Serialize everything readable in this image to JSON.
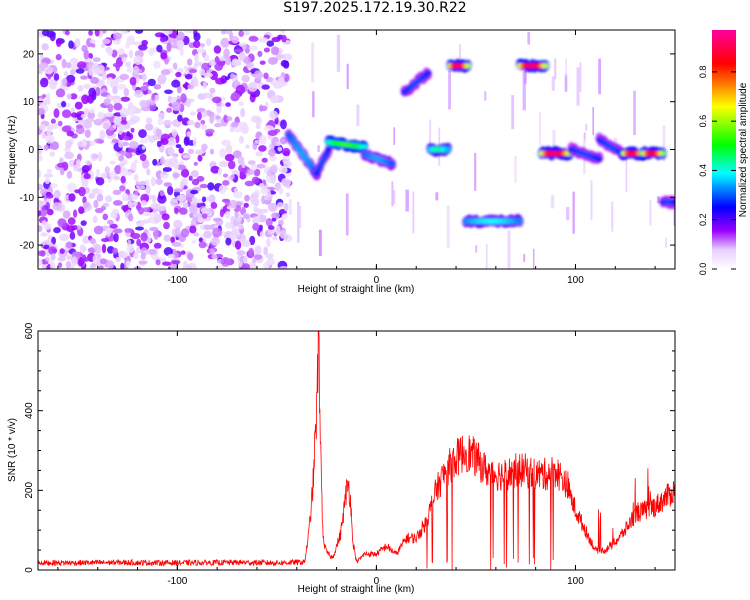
{
  "title": "S197.2025.172.19.30.R22",
  "chart_data": [
    {
      "type": "heatmap",
      "xlabel": "Height of straight line (km)",
      "ylabel": "Frequency (Hz)",
      "xlim": [
        -170,
        150
      ],
      "ylim": [
        -25,
        25
      ],
      "xticks": [
        -100,
        0,
        100
      ],
      "yticks": [
        -20,
        -10,
        0,
        10,
        20
      ],
      "colorbar": {
        "label": "Normalized spectral amplitude",
        "range": [
          0,
          0.97
        ],
        "ticks": [
          "0.0",
          "0.2",
          "0.4",
          "0.6",
          "0.8"
        ],
        "tick_values": [
          0.0,
          0.2,
          0.4,
          0.6,
          0.8
        ],
        "colormap": [
          "#ffffff",
          "#9a00ff",
          "#0000ff",
          "#00ffff",
          "#00ff00",
          "#ffff00",
          "#ff0000",
          "#ff00a0"
        ]
      },
      "noise_region": {
        "x": [
          -170,
          -44
        ],
        "level": 0.15
      },
      "features": [
        {
          "x0": -44,
          "x1": -30,
          "freq_start": 3,
          "freq_end": -5,
          "amp": 0.35
        },
        {
          "x0": -30,
          "x1": -24,
          "freq_start": -5,
          "freq_end": 0,
          "amp": 0.3
        },
        {
          "x0": -24,
          "x1": -6,
          "freq_start": 1.5,
          "freq_end": 0.5,
          "amp": 0.55
        },
        {
          "x0": -6,
          "x1": 8,
          "freq_start": -1,
          "freq_end": -3,
          "amp": 0.35
        },
        {
          "x0": 14,
          "x1": 26,
          "freq_start": 12,
          "freq_end": 16,
          "amp": 0.3
        },
        {
          "x0": 27,
          "x1": 36,
          "freq_start": 0,
          "freq_end": 0,
          "amp": 0.45
        },
        {
          "x0": 37,
          "x1": 46,
          "freq_start": 17.5,
          "freq_end": 17.5,
          "amp": 0.95
        },
        {
          "x0": 45,
          "x1": 72,
          "freq_start": -15,
          "freq_end": -15,
          "amp": 0.4
        },
        {
          "x0": 72,
          "x1": 85,
          "freq_start": 17.5,
          "freq_end": 17.5,
          "amp": 0.95
        },
        {
          "x0": 83,
          "x1": 97,
          "freq_start": -0.8,
          "freq_end": -0.8,
          "amp": 0.95
        },
        {
          "x0": 98,
          "x1": 112,
          "freq_start": 0,
          "freq_end": -2,
          "amp": 0.3
        },
        {
          "x0": 112,
          "x1": 124,
          "freq_start": 2,
          "freq_end": -1,
          "amp": 0.3
        },
        {
          "x0": 124,
          "x1": 134,
          "freq_start": -0.8,
          "freq_end": -0.8,
          "amp": 0.9
        },
        {
          "x0": 134,
          "x1": 144,
          "freq_start": -0.8,
          "freq_end": -0.8,
          "amp": 0.9
        },
        {
          "x0": 144,
          "x1": 150,
          "freq_start": -11,
          "freq_end": -11,
          "amp": 0.3
        }
      ]
    },
    {
      "type": "line",
      "xlabel": "Height of straight line (km)",
      "ylabel": "SNR (10 * v/v)",
      "xlim": [
        -170,
        150
      ],
      "ylim": [
        0,
        600
      ],
      "xticks": [
        -100,
        0,
        100
      ],
      "yticks": [
        0,
        200,
        400,
        600
      ],
      "color": "#ff0000",
      "series": [
        {
          "x": [
            -170,
            -150,
            -130,
            -110,
            -90,
            -70,
            -50,
            -36,
            -34,
            -32,
            -30,
            -29,
            -28,
            -27,
            -26,
            -25,
            -22,
            -18,
            -15,
            -14,
            -13,
            -12,
            -10,
            -6,
            0,
            5,
            10,
            15,
            20,
            25,
            30,
            35,
            40,
            45,
            50,
            55,
            60,
            65,
            70,
            75,
            80,
            85,
            90,
            95,
            100,
            105,
            110,
            115,
            120,
            125,
            130,
            135,
            140,
            145,
            150
          ],
          "y": [
            18,
            18,
            19,
            18,
            18,
            19,
            18,
            20,
            90,
            200,
            400,
            580,
            300,
            100,
            60,
            45,
            30,
            90,
            200,
            215,
            180,
            80,
            20,
            40,
            40,
            60,
            40,
            80,
            80,
            120,
            200,
            250,
            280,
            300,
            280,
            250,
            240,
            240,
            250,
            250,
            240,
            240,
            250,
            220,
            150,
            100,
            50,
            50,
            70,
            100,
            140,
            150,
            160,
            180,
            200
          ]
        }
      ]
    }
  ]
}
